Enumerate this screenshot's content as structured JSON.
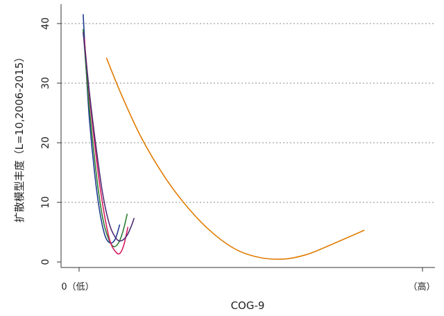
{
  "chart_data": {
    "type": "line",
    "title": "",
    "xlabel": "COG-9",
    "ylabel": "扩散模型丰度（L=10,2006-2015）",
    "x_tick_labels": {
      "low": "0（低）",
      "high": "（高）"
    },
    "xlim": [
      0,
      1
    ],
    "ylim": [
      0,
      42
    ],
    "yticks": [
      0,
      10,
      20,
      30,
      40
    ],
    "grid": {
      "y": true,
      "style": "dotted"
    },
    "legend": "none",
    "series": [
      {
        "color": "#1f3a93",
        "x": [
          0.012,
          0.02,
          0.03,
          0.045,
          0.06,
          0.075,
          0.09,
          0.105,
          0.118
        ],
        "y": [
          41.5,
          33,
          24,
          15,
          8.5,
          4.5,
          3.2,
          3.8,
          6.2
        ]
      },
      {
        "color": "#2e7d32",
        "x": [
          0.012,
          0.025,
          0.04,
          0.055,
          0.07,
          0.085,
          0.1,
          0.115,
          0.128,
          0.14
        ],
        "y": [
          39,
          29,
          20,
          12.5,
          7,
          4,
          2.6,
          3.2,
          5.2,
          8
        ]
      },
      {
        "color": "#d81b60",
        "x": [
          0.015,
          0.03,
          0.045,
          0.06,
          0.075,
          0.09,
          0.105,
          0.118,
          0.13,
          0.142
        ],
        "y": [
          37.5,
          28,
          20,
          13,
          7.5,
          3.5,
          1.8,
          1.4,
          2.8,
          5.8
        ]
      },
      {
        "color": "#4b2c73",
        "x": [
          0.012,
          0.03,
          0.05,
          0.07,
          0.09,
          0.11,
          0.125,
          0.14,
          0.152,
          0.16
        ],
        "y": [
          38.5,
          28.5,
          19,
          11,
          6,
          3.8,
          3.6,
          4.5,
          6,
          7.3
        ]
      },
      {
        "color": "#e07b00",
        "x": [
          0.08,
          0.12,
          0.18,
          0.25,
          0.32,
          0.39,
          0.46,
          0.53,
          0.6,
          0.66,
          0.71,
          0.75,
          0.79,
          0.83
        ],
        "y": [
          34.2,
          28.5,
          21,
          14.2,
          8.9,
          4.8,
          2,
          0.7,
          0.5,
          1.2,
          2.3,
          3.3,
          4.3,
          5.3
        ]
      }
    ]
  }
}
